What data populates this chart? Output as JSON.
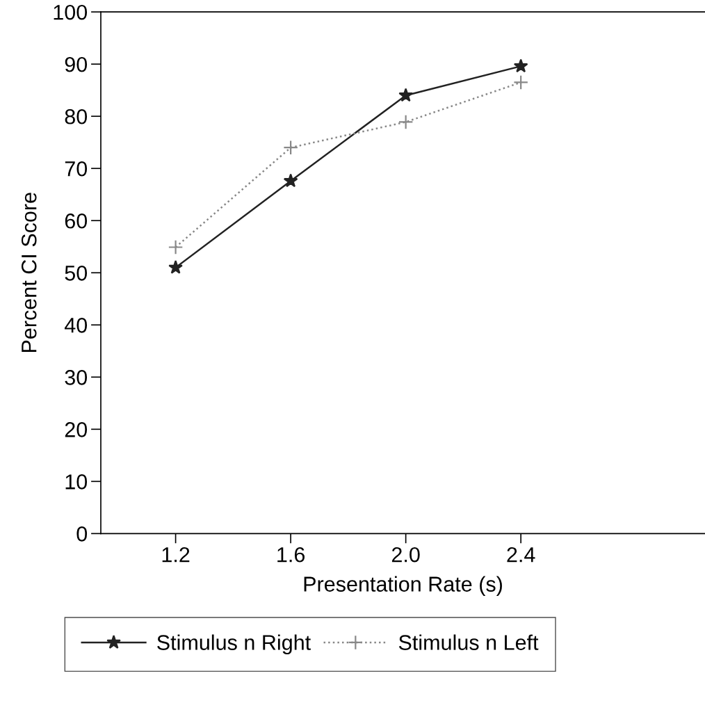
{
  "chart_data": {
    "type": "line",
    "xlabel": "Presentation Rate (s)",
    "ylabel": "Percent CI Score",
    "x": [
      1.2,
      1.6,
      2.0,
      2.4
    ],
    "series": [
      {
        "name": "Stimulus n Right",
        "color": "#222222",
        "values": [
          51,
          67.6,
          84,
          89.6
        ],
        "marker": "star",
        "line_style": "solid"
      },
      {
        "name": "Stimulus n Left",
        "color": "#888888",
        "values": [
          54.9,
          74,
          78.9,
          86.5
        ],
        "marker": "cross",
        "line_style": "dotted"
      }
    ],
    "xlim": [
      0.94,
      3.04
    ],
    "xticks": [
      1.2,
      1.6,
      {
        "value": 2.0,
        "label": "2.0"
      },
      2.4
    ],
    "ylim": [
      0,
      100
    ],
    "yticks": [
      0,
      10,
      20,
      30,
      40,
      50,
      60,
      70,
      80,
      90,
      100
    ],
    "grid": false,
    "legend": "bottom"
  }
}
